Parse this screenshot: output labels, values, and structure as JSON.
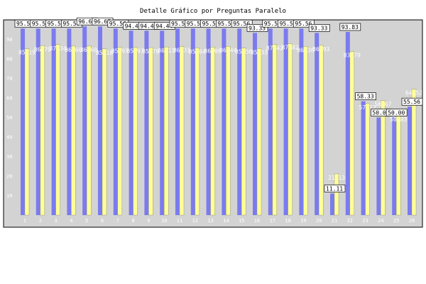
{
  "chart_data": {
    "type": "bar",
    "title": "Detalle Gráfico por Preguntas Paralelo",
    "xlabel": "",
    "ylabel": "",
    "ylim": [
      0,
      100
    ],
    "yticks": [
      10,
      20,
      30,
      40,
      50,
      60,
      70,
      80,
      90
    ],
    "categories": [
      "1",
      "2",
      "3",
      "4",
      "5",
      "6",
      "7",
      "8",
      "9",
      "10",
      "11",
      "12",
      "13",
      "14",
      "15",
      "16",
      "17",
      "18",
      "19",
      "20",
      "21",
      "22",
      "23",
      "24",
      "25",
      "26"
    ],
    "grid": false,
    "legend": "none",
    "colors": {
      "plot_bg": "#d3d3d3",
      "frame": "#000000",
      "series_a": "#7b7bef",
      "series_b": "#ffff99"
    },
    "series": [
      {
        "values": [
          95.56,
          95.56,
          95.56,
          95.56,
          96.67,
          96.67,
          95.56,
          94.44,
          94.44,
          94.44,
          95.56,
          95.56,
          95.56,
          95.56,
          95.56,
          93.33,
          95.56,
          95.56,
          95.56,
          93.33,
          11.11,
          93.83,
          58.33,
          50.0,
          50.0,
          55.56
        ]
      },
      {
        "values": [
          85.19,
          86.79,
          87.34,
          86.6,
          86.6,
          85.18,
          85.97,
          85.97,
          85.76,
          86.13,
          86.31,
          85.64,
          86.08,
          86.44,
          85.56,
          85.33,
          87.42,
          87.82,
          86.38,
          86.93,
          21.13,
          83.79,
          57.12,
          58.67,
          50.83,
          64.52
        ]
      }
    ],
    "labels_a": [
      "95.56",
      "95.56",
      "95.56",
      "95.56",
      "96.67",
      "96.67",
      "95.56",
      "94.44",
      "94.44",
      "94.44",
      "95.56",
      "95.56",
      "95.56",
      "95.56",
      "95.56",
      "93.33",
      "95.56",
      "95.56",
      "95.56",
      "93.33",
      "11.11",
      "93.83",
      "58.33",
      "50.00",
      "50.00",
      "55.56"
    ],
    "labels_b": [
      "85.19",
      "86.79",
      "87.34",
      "86.60",
      "86.60",
      "85.18",
      "85.97",
      "85.97",
      "85.76",
      "86.13",
      "86.31",
      "85.64",
      "86.08",
      "86.44",
      "85.56",
      "85.33",
      "87.42",
      "87.82",
      "86.38",
      "86.93",
      "21.13",
      "83.79",
      "57.12",
      "58.67",
      "50.83",
      "64.52"
    ]
  }
}
